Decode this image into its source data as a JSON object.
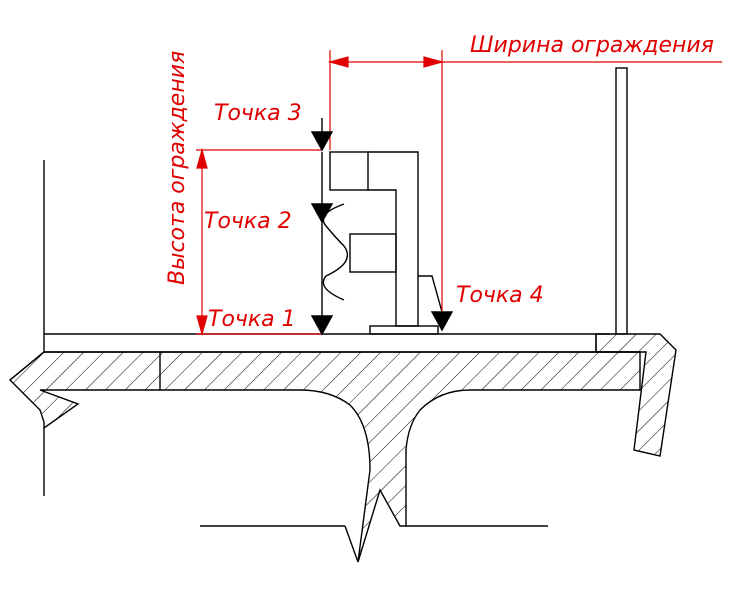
{
  "labels": {
    "width": "Ширина ограждения",
    "height": "Высота ограждения",
    "point1": "Точка 1",
    "point2": "Точка 2",
    "point3": "Точка 3",
    "point4": "Точка 4"
  },
  "colors": {
    "dimension": "#e00000",
    "line": "#000000",
    "background": "#ffffff"
  }
}
